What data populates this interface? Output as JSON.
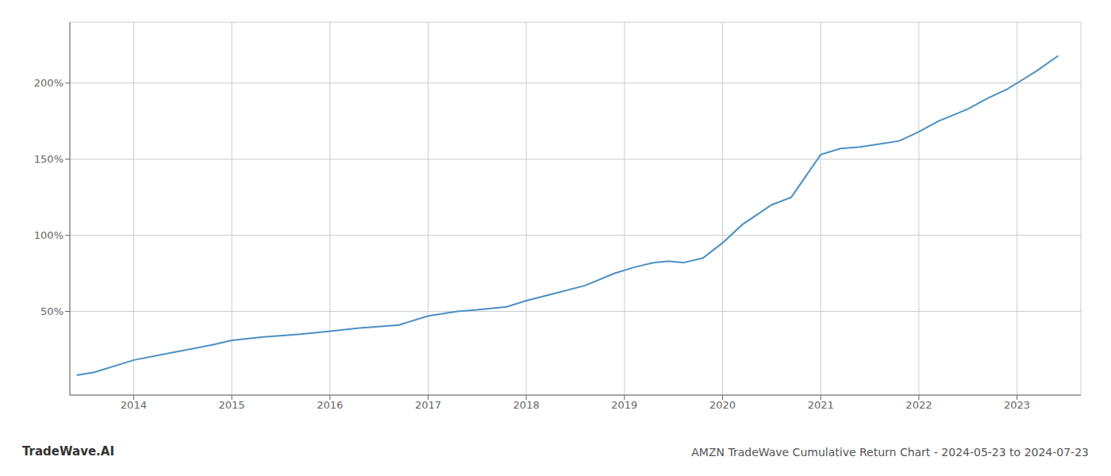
{
  "chart_data": {
    "type": "line",
    "title": "AMZN TradeWave Cumulative Return Chart - 2024-05-23 to 2024-07-23",
    "annotations": [
      "TradeWave.AI"
    ],
    "x": [
      2013.42,
      2013.6,
      2014.0,
      2014.4,
      2014.8,
      2015.0,
      2015.3,
      2015.7,
      2016.0,
      2016.3,
      2016.7,
      2017.0,
      2017.3,
      2017.5,
      2017.8,
      2018.0,
      2018.3,
      2018.6,
      2018.9,
      2019.1,
      2019.3,
      2019.45,
      2019.6,
      2019.8,
      2020.0,
      2020.2,
      2020.5,
      2020.7,
      2021.0,
      2021.2,
      2021.4,
      2021.6,
      2021.8,
      2022.0,
      2022.2,
      2022.5,
      2022.7,
      2022.9,
      2023.0,
      2023.2,
      2023.42
    ],
    "values": [
      8,
      10,
      18,
      23,
      28,
      31,
      33,
      35,
      37,
      39,
      41,
      47,
      50,
      51,
      53,
      57,
      62,
      67,
      75,
      79,
      82,
      83,
      82,
      85,
      95,
      107,
      120,
      125,
      153,
      157,
      158,
      160,
      162,
      168,
      175,
      183,
      190,
      196,
      200,
      208,
      218
    ],
    "color": "#4a90c4",
    "xlim": [
      2013.35,
      2023.65
    ],
    "xticks": [
      2014,
      2015,
      2016,
      2017,
      2018,
      2019,
      2020,
      2021,
      2022,
      2023
    ],
    "ylim": [
      -5,
      240
    ],
    "yticks": [
      {
        "value": 50,
        "label": "50%"
      },
      {
        "value": 100,
        "label": "100%"
      },
      {
        "value": 150,
        "label": "150%"
      },
      {
        "value": 200,
        "label": "200%"
      }
    ],
    "grid": true
  }
}
